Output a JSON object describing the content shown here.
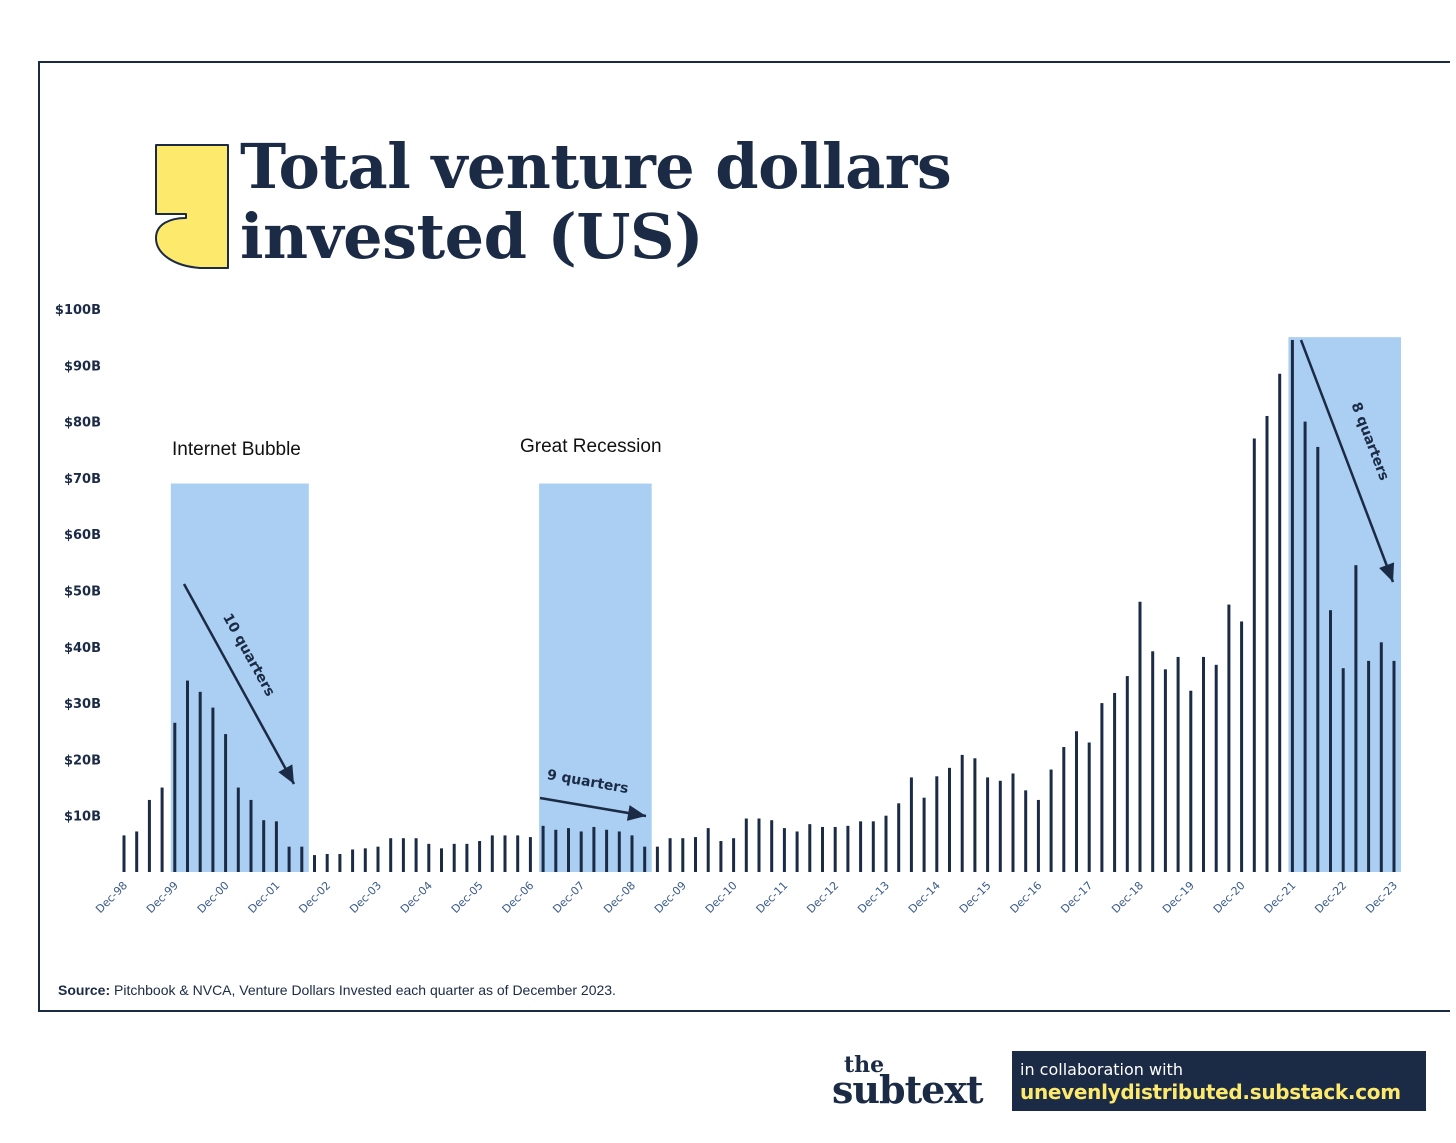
{
  "title": {
    "line1": "Total venture dollars",
    "line2": "invested (US)"
  },
  "source": {
    "label": "Source:",
    "text": " Pitchbook & NVCA, Venture Dollars Invested each quarter as of December 2023."
  },
  "brand": {
    "the": "the",
    "name": "subtext",
    "collab_line1": "in collaboration with",
    "collab_line2": "unevenlydistributed.substack.com"
  },
  "colors": {
    "navy": "#1b2a45",
    "highlight": "#aacff2",
    "quote_yellow": "#fde96b"
  },
  "chart_data": {
    "type": "bar",
    "title": "Total venture dollars invested (US)",
    "ylabel": "",
    "xlabel": "",
    "ylim": [
      0,
      100
    ],
    "y_ticks": [
      "$10B",
      "$20B",
      "$30B",
      "$40B",
      "$50B",
      "$60B",
      "$70B",
      "$80B",
      "$90B",
      "$100B"
    ],
    "x_tick_labels": [
      "Dec-98",
      "Dec-99",
      "Dec-00",
      "Dec-01",
      "Dec-02",
      "Dec-03",
      "Dec-04",
      "Dec-05",
      "Dec-06",
      "Dec-07",
      "Dec-08",
      "Dec-09",
      "Dec-10",
      "Dec-11",
      "Dec-12",
      "Dec-13",
      "Dec-14",
      "Dec-15",
      "Dec-16",
      "Dec-17",
      "Dec-18",
      "Dec-19",
      "Dec-20",
      "Dec-21",
      "Dec-22",
      "Dec-23"
    ],
    "series": [
      {
        "name": "",
        "unit": "$B",
        "values": [
          6.5,
          7.2,
          12.8,
          15.0,
          26.5,
          34.0,
          32.0,
          29.2,
          24.5,
          15.0,
          12.8,
          9.2,
          9.0,
          4.5,
          4.5,
          3.0,
          3.2,
          3.2,
          4.0,
          4.2,
          4.5,
          6.0,
          6.0,
          6.0,
          5.0,
          4.2,
          5.0,
          5.0,
          5.5,
          6.5,
          6.5,
          6.5,
          6.2,
          8.2,
          7.5,
          7.8,
          7.2,
          8.0,
          7.5,
          7.2,
          6.5,
          4.5,
          4.5,
          6.0,
          6.0,
          6.2,
          7.8,
          5.5,
          6.0,
          9.5,
          9.5,
          9.2,
          7.8,
          7.2,
          8.5,
          8.0,
          8.0,
          8.2,
          9.0,
          9.0,
          10.0,
          12.2,
          16.8,
          13.2,
          17.0,
          18.5,
          20.8,
          20.2,
          16.8,
          16.2,
          17.5,
          14.5,
          12.8,
          18.2,
          22.2,
          25.0,
          23.0,
          30.0,
          31.8,
          34.8,
          48.0,
          39.2,
          36.0,
          38.2,
          32.2,
          38.2,
          36.8,
          47.5,
          44.5,
          77.0,
          81.0,
          88.5,
          94.5,
          80.0,
          75.5,
          46.5,
          36.2,
          54.5,
          37.5,
          40.8,
          37.5
        ]
      }
    ],
    "annotations": [
      {
        "label": "Internet Bubble",
        "arrow_label": "10 quarters"
      },
      {
        "label": "Great Recession",
        "arrow_label": "9 quarters"
      },
      {
        "label": "",
        "arrow_label": "8 quarters"
      }
    ],
    "shaded_ranges": [
      {
        "start_bar": 4,
        "end_bar": 14,
        "top": 69
      },
      {
        "start_bar": 33,
        "end_bar": 41,
        "top": 69
      },
      {
        "start_bar": 92,
        "end_bar": 100,
        "top": 95
      }
    ],
    "grid": false,
    "legend": "none"
  }
}
